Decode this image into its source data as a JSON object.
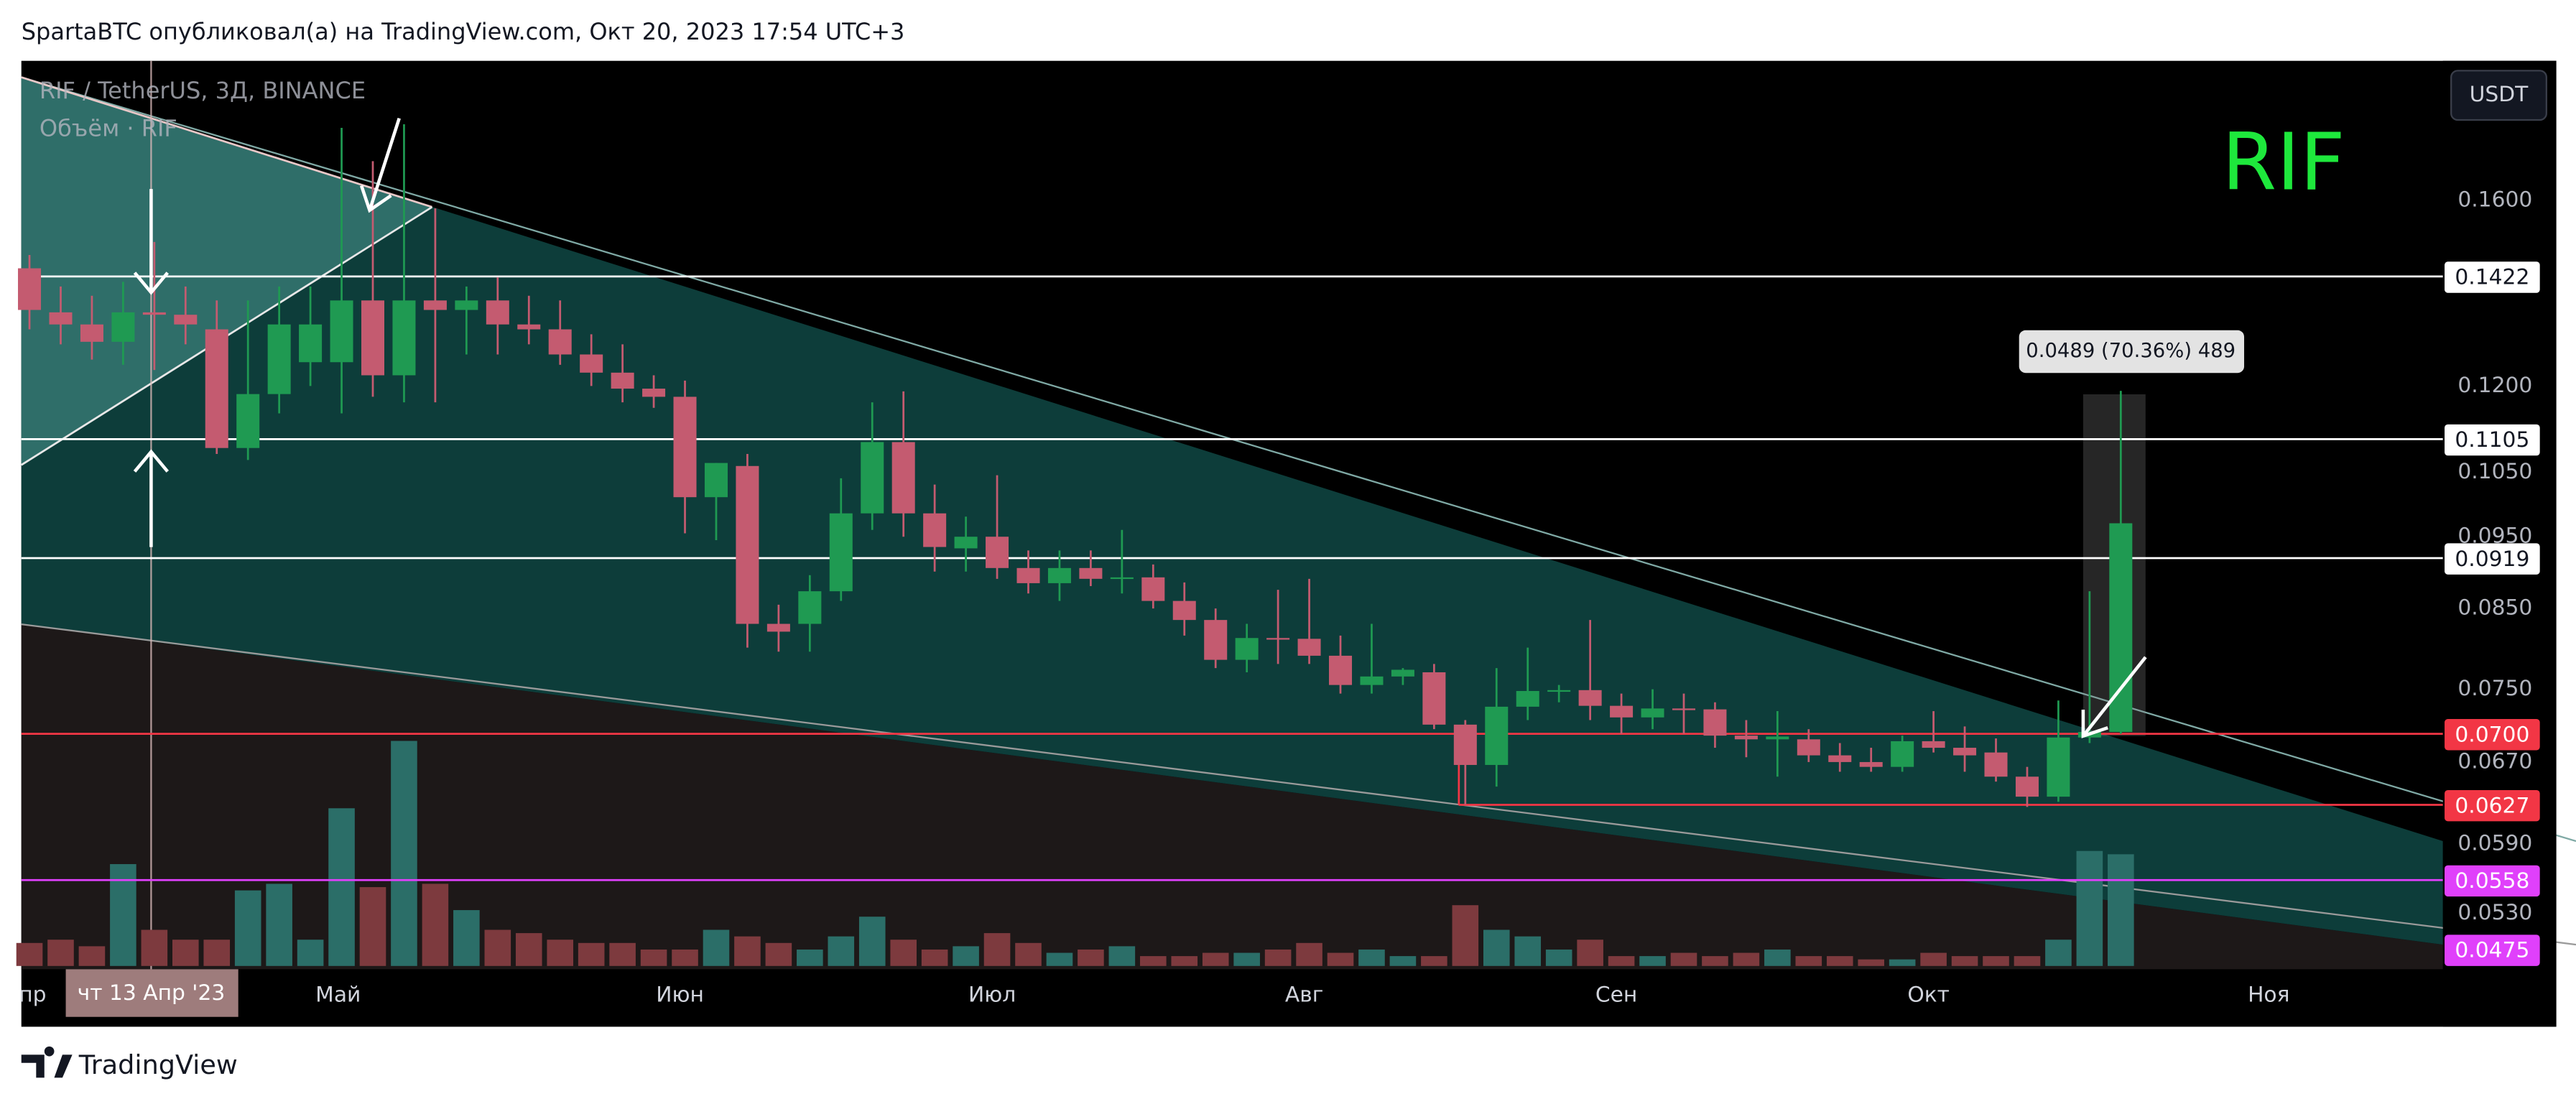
{
  "header": {
    "text": "SpartaBTC опубликовал(а) на TradingView.com, Окт 20, 2023 17:54 UTC+3"
  },
  "footer": {
    "brand": "TradingView"
  },
  "chart_data": {
    "type": "candlestick",
    "title": "RIF / TetherUS, 3Д, BINANCE",
    "volume_title": "Объём · RIF",
    "annotation": "RIF",
    "currency": "USDT",
    "measure_label": "0.0489 (70.36%) 489",
    "crosshair_label": "чт 13 Апр '23",
    "log_scale": true,
    "grid": false,
    "up_color": "#1f9a52",
    "down_color": "#c45b70",
    "volume_up_color": "#2b6e68",
    "volume_down_color": "#7d3a3e",
    "ylim": [
      0.0486,
      0.1986
    ],
    "yticks": [
      {
        "value": 0.16,
        "label": "0.1600"
      },
      {
        "value": 0.12,
        "label": "0.1200"
      },
      {
        "value": 0.105,
        "label": "0.1050"
      },
      {
        "value": 0.095,
        "label": "0.0950"
      },
      {
        "value": 0.085,
        "label": "0.0850"
      },
      {
        "value": 0.075,
        "label": "0.0750"
      },
      {
        "value": 0.067,
        "label": "0.0670"
      },
      {
        "value": 0.059,
        "label": "0.0590"
      },
      {
        "value": 0.053,
        "label": "0.0530"
      }
    ],
    "xlim": [
      -0.26,
      77.32
    ],
    "xticks": [
      {
        "value": 0.1,
        "label": "пр"
      },
      {
        "value": 9.89,
        "label": "Май"
      },
      {
        "value": 20.84,
        "label": "Июн"
      },
      {
        "value": 30.84,
        "label": "Июл"
      },
      {
        "value": 40.84,
        "label": "Авг"
      },
      {
        "value": 50.84,
        "label": "Сен"
      },
      {
        "value": 60.84,
        "label": "Окт"
      },
      {
        "value": 71.74,
        "label": "Ноя"
      }
    ],
    "crosshair_x": 3.9,
    "open": [
      0.144,
      0.1345,
      0.132,
      0.1285,
      0.1345,
      0.134,
      0.131,
      0.109,
      0.1185,
      0.1245,
      0.1245,
      0.137,
      0.122,
      0.137,
      0.135,
      0.137,
      0.132,
      0.131,
      0.126,
      0.1225,
      0.1195,
      0.118,
      0.101,
      0.106,
      0.083,
      0.083,
      0.0873,
      0.0985,
      0.11,
      0.0985,
      0.0933,
      0.095,
      0.0905,
      0.0884,
      0.0905,
      0.089,
      0.0892,
      0.086,
      0.0835,
      0.0785,
      0.0812,
      0.0811,
      0.079,
      0.0755,
      0.0765,
      0.077,
      0.071,
      0.0667,
      0.073,
      0.0748,
      0.0749,
      0.0731,
      0.0718,
      0.0728,
      0.0727,
      0.0698,
      0.0694,
      0.0694,
      0.0677,
      0.067,
      0.0665,
      0.0692,
      0.0685,
      0.068,
      0.0655,
      0.0635,
      0.0696,
      0.0702
    ],
    "high": [
      0.147,
      0.14,
      0.138,
      0.141,
      0.15,
      0.14,
      0.137,
      0.137,
      0.14,
      0.14,
      0.179,
      0.17,
      0.18,
      0.158,
      0.14,
      0.142,
      0.138,
      0.137,
      0.13,
      0.128,
      0.122,
      0.121,
      0.1065,
      0.108,
      0.0855,
      0.0895,
      0.104,
      0.117,
      0.119,
      0.103,
      0.098,
      0.1045,
      0.093,
      0.093,
      0.093,
      0.096,
      0.091,
      0.0885,
      0.085,
      0.083,
      0.0875,
      0.089,
      0.0815,
      0.083,
      0.0775,
      0.078,
      0.0715,
      0.0775,
      0.08,
      0.0755,
      0.0835,
      0.0745,
      0.075,
      0.0745,
      0.0735,
      0.0715,
      0.0725,
      0.0705,
      0.069,
      0.0685,
      0.0698,
      0.0725,
      0.0708,
      0.0695,
      0.0665,
      0.0737,
      0.0873,
      0.1191
    ],
    "low": [
      0.131,
      0.128,
      0.125,
      0.124,
      0.123,
      0.128,
      0.108,
      0.107,
      0.115,
      0.12,
      0.115,
      0.118,
      0.117,
      0.117,
      0.126,
      0.126,
      0.128,
      0.124,
      0.12,
      0.117,
      0.116,
      0.0955,
      0.0945,
      0.08,
      0.0795,
      0.0795,
      0.086,
      0.096,
      0.095,
      0.09,
      0.09,
      0.089,
      0.087,
      0.086,
      0.088,
      0.087,
      0.085,
      0.0815,
      0.0775,
      0.077,
      0.078,
      0.078,
      0.0745,
      0.0745,
      0.0755,
      0.0705,
      0.0627,
      0.0645,
      0.0715,
      0.0735,
      0.0715,
      0.07,
      0.0705,
      0.07,
      0.0685,
      0.0675,
      0.0655,
      0.067,
      0.066,
      0.066,
      0.066,
      0.068,
      0.066,
      0.065,
      0.0625,
      0.063,
      0.069,
      0.07
    ],
    "close": [
      0.135,
      0.132,
      0.1285,
      0.1345,
      0.134,
      0.132,
      0.109,
      0.1185,
      0.132,
      0.132,
      0.137,
      0.122,
      0.137,
      0.135,
      0.137,
      0.132,
      0.131,
      0.126,
      0.1225,
      0.1195,
      0.118,
      0.101,
      0.1065,
      0.083,
      0.082,
      0.0873,
      0.0985,
      0.11,
      0.0985,
      0.0935,
      0.095,
      0.0905,
      0.0884,
      0.0905,
      0.089,
      0.0892,
      0.086,
      0.0835,
      0.0785,
      0.0812,
      0.0811,
      0.079,
      0.0755,
      0.0765,
      0.0773,
      0.071,
      0.0667,
      0.073,
      0.0748,
      0.0749,
      0.0731,
      0.0718,
      0.0728,
      0.0727,
      0.0698,
      0.0694,
      0.0697,
      0.0677,
      0.067,
      0.0665,
      0.0692,
      0.0685,
      0.0677,
      0.0655,
      0.0635,
      0.0696,
      0.0702,
      0.097
    ],
    "volume_ylim": [
      0,
      150
    ],
    "volume": [
      14,
      16,
      12,
      62,
      22,
      16,
      16,
      46,
      50,
      16,
      96,
      48,
      137,
      50,
      34,
      22,
      20,
      16,
      14,
      14,
      10,
      10,
      22,
      18,
      14,
      10,
      18,
      30,
      16,
      10,
      12,
      20,
      14,
      8,
      10,
      12,
      6,
      6,
      8,
      8,
      10,
      14,
      8,
      10,
      6,
      6,
      37,
      22,
      18,
      10,
      16,
      6,
      6,
      8,
      6,
      8,
      10,
      6,
      6,
      4,
      4,
      8,
      6,
      6,
      6,
      16,
      70,
      68
    ],
    "levels": [
      {
        "value": 0.1422,
        "color": "#ffffff"
      },
      {
        "value": 0.1105,
        "color": "#ffffff"
      },
      {
        "value": 0.0919,
        "color": "#ffffff"
      },
      {
        "value": 0.07,
        "label": "0.0700",
        "color": "#f23645"
      },
      {
        "value": 0.0627,
        "color": "#f23645"
      },
      {
        "value": 0.0558,
        "color": "#e040fb"
      },
      {
        "value": 0.0475,
        "color": "#e040fb"
      }
    ]
  }
}
